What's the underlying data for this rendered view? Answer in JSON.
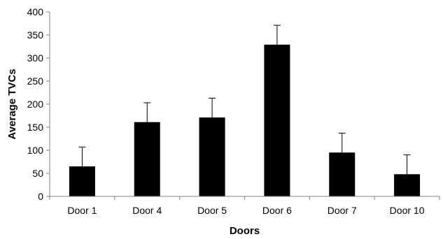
{
  "chart_data": {
    "type": "bar",
    "title": "",
    "xlabel": "Doors",
    "ylabel": "Average TVCs",
    "categories": [
      "Door 1",
      "Door 4",
      "Door 5",
      "Door 6",
      "Door 7",
      "Door 10"
    ],
    "values": [
      65,
      161,
      171,
      329,
      95,
      48
    ],
    "error_plus": [
      42,
      42,
      42,
      42,
      42,
      42
    ],
    "ylim": [
      0,
      400
    ],
    "yticks": [
      0,
      50,
      100,
      150,
      200,
      250,
      300,
      350,
      400
    ],
    "bar_color": "#000000",
    "grid": false,
    "legend": "none"
  }
}
